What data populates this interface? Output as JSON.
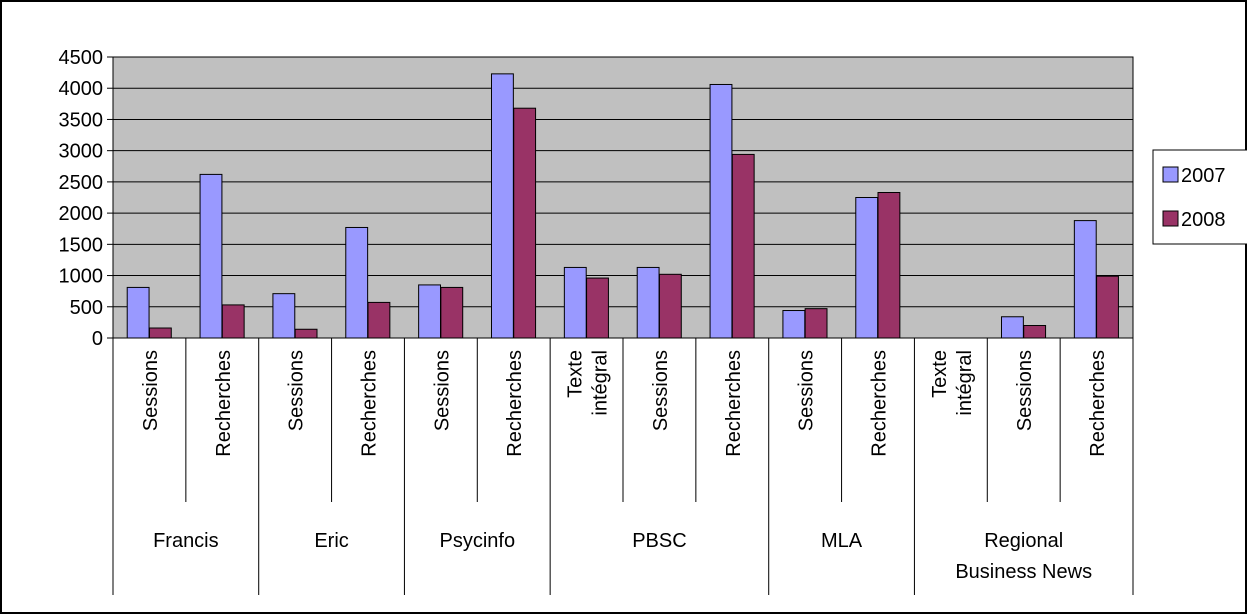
{
  "chart_data": {
    "type": "bar",
    "title": "",
    "xlabel": "",
    "ylabel": "",
    "ylim": [
      0,
      4500
    ],
    "yticks": [
      0,
      500,
      1000,
      1500,
      2000,
      2500,
      3000,
      3500,
      4000,
      4500
    ],
    "grid": true,
    "legend_position": "right",
    "groups": [
      {
        "name": "Francis",
        "label_lines": [
          "Francis"
        ],
        "categories": [
          {
            "label_lines": [
              "Sessions"
            ]
          },
          {
            "label_lines": [
              "Recherches"
            ]
          }
        ]
      },
      {
        "name": "Eric",
        "label_lines": [
          "Eric"
        ],
        "categories": [
          {
            "label_lines": [
              "Sessions"
            ]
          },
          {
            "label_lines": [
              "Recherches"
            ]
          }
        ]
      },
      {
        "name": "Psycinfo",
        "label_lines": [
          "Psycinfo"
        ],
        "categories": [
          {
            "label_lines": [
              "Sessions"
            ]
          },
          {
            "label_lines": [
              "Recherches"
            ]
          }
        ]
      },
      {
        "name": "PBSC",
        "label_lines": [
          "PBSC"
        ],
        "categories": [
          {
            "label_lines": [
              "Texte",
              "intégral"
            ]
          },
          {
            "label_lines": [
              "Sessions"
            ]
          },
          {
            "label_lines": [
              "Recherches"
            ]
          }
        ]
      },
      {
        "name": "MLA",
        "label_lines": [
          "MLA"
        ],
        "categories": [
          {
            "label_lines": [
              "Sessions"
            ]
          },
          {
            "label_lines": [
              "Recherches"
            ]
          }
        ]
      },
      {
        "name": "Regional Business News",
        "label_lines": [
          "Regional",
          "Business News"
        ],
        "categories": [
          {
            "label_lines": [
              "Texte",
              "intégral"
            ]
          },
          {
            "label_lines": [
              "Sessions"
            ]
          },
          {
            "label_lines": [
              "Recherches"
            ]
          }
        ]
      }
    ],
    "series": [
      {
        "name": "2007",
        "color": "#9999ff",
        "values": [
          810,
          2620,
          710,
          1770,
          850,
          4230,
          1130,
          1130,
          4060,
          440,
          2250,
          0,
          340,
          1880
        ]
      },
      {
        "name": "2008",
        "color": "#993366",
        "values": [
          160,
          530,
          140,
          570,
          810,
          3680,
          960,
          1020,
          2940,
          470,
          2330,
          0,
          200,
          990
        ]
      }
    ]
  }
}
